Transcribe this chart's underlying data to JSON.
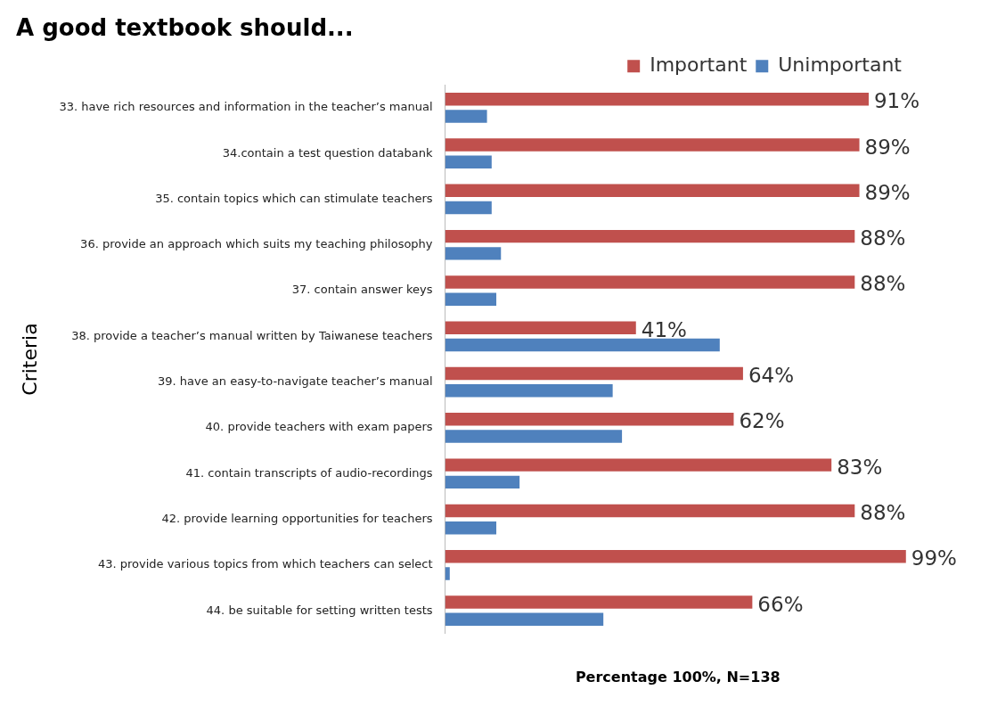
{
  "chart_data": {
    "type": "bar",
    "orientation": "horizontal",
    "title": "A good textbook should...",
    "xlabel": "Percentage 100%, N=138",
    "ylabel": "Criteria",
    "categories": [
      "33. have rich resources and information in the teacher’s manual",
      "34.contain a test question databank",
      "35. contain topics which can stimulate teachers",
      "36. provide an approach which suits my teaching philosophy",
      "37. contain answer keys",
      "38. provide a teacher’s manual written by Taiwanese teachers",
      "39. have an easy-to-navigate teacher’s manual",
      "40. provide teachers with exam papers",
      "41. contain transcripts of audio-recordings",
      "42. provide learning opportunities for teachers",
      "43. provide various topics from which teachers can select",
      "44. be suitable for setting written tests"
    ],
    "series": [
      {
        "name": "Important",
        "color": "#c0504d",
        "values": [
          91,
          89,
          89,
          88,
          88,
          41,
          64,
          62,
          83,
          88,
          99,
          66
        ],
        "value_labels": [
          "91%",
          "89%",
          "89%",
          "88%",
          "88%",
          "41%",
          "64%",
          "62%",
          "83%",
          "88%",
          "99%",
          "66%"
        ]
      },
      {
        "name": "Unimportant",
        "color": "#4f81bd",
        "values": [
          9,
          10,
          10,
          12,
          11,
          59,
          36,
          38,
          16,
          11,
          1,
          34
        ]
      }
    ],
    "tick_labels": "y",
    "grid": false,
    "legend": "top right"
  }
}
